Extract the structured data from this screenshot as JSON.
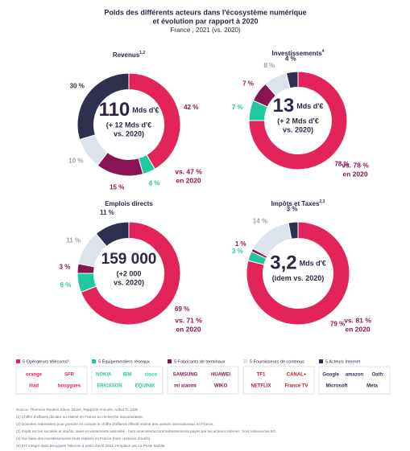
{
  "title": [
    "Poids des différents acteurs dans l'écosystème numérique",
    "et évolution par rapport à 2020"
  ],
  "subtitle": "France , 2021 (vs. 2020)",
  "chart_data": [
    {
      "type": "pie",
      "title": "Revenus",
      "title_note": "1,2",
      "values": [
        42,
        4,
        15,
        10,
        30
      ],
      "value_labels": [
        "42 %",
        "4 %",
        "15 %",
        "10 %",
        "30 %"
      ],
      "center": {
        "main": "110",
        "unit": "Mds d'€",
        "lines": [
          "(+ 12 Mds d'€",
          "vs. 2020)"
        ]
      },
      "note": [
        "vs. 47 %",
        "en 2020"
      ]
    },
    {
      "type": "pie",
      "title": "Investissements",
      "title_note": "4",
      "values": [
        78,
        7,
        7,
        8,
        4
      ],
      "value_labels": [
        "78 %",
        "7 %",
        "7 %",
        "8 %",
        "4 %"
      ],
      "center": {
        "main": "13",
        "unit": "Mds d'€",
        "lines": [
          "(+ 2 Mds d'€",
          "vs. 2020)"
        ]
      },
      "note": [
        "vs. 78 %",
        "en 2020"
      ]
    },
    {
      "type": "pie",
      "title": "Emplois directs",
      "values": [
        69,
        6,
        3,
        11,
        11
      ],
      "value_labels": [
        "69 %",
        "6 %",
        "3 %",
        "11 %",
        "11 %"
      ],
      "center": {
        "main": "159 000",
        "lines": [
          "(+2 000",
          "vs. 2020)"
        ]
      },
      "note": [
        "vs. 71 %",
        "en 2020"
      ]
    },
    {
      "type": "pie",
      "title": "Impôts et Taxes",
      "title_note": "2,3",
      "values": [
        79,
        3,
        1,
        14,
        3
      ],
      "value_labels": [
        "79 %",
        "3 %",
        "1 %",
        "14 %",
        "3 %"
      ],
      "center": {
        "main": "3,2",
        "unit": "Mds d'€",
        "lines": [
          "(idem vs. 2020)"
        ]
      },
      "note": [
        "vs. 81 %",
        "en 2020"
      ]
    }
  ],
  "legend": [
    {
      "name": "5 Opérateurs télécoms⁵",
      "color": "#e3245a",
      "logos": [
        "orange",
        "SFR",
        "iliad",
        "bouygues"
      ]
    },
    {
      "name": "5 Équipementiers réseaux",
      "color": "#1fc9a0",
      "logos": [
        "NOKIA",
        "IBM",
        "cisco",
        "ERICSSON",
        "EQUINIX"
      ]
    },
    {
      "name": "5 Fabricants de terminaux",
      "color": "#8a1451",
      "logos": [
        "SAMSUNG",
        "HUAWEI",
        "mi xiaomi",
        "WIKO"
      ]
    },
    {
      "name": "5 Fournisseurs de contenus",
      "color": "#dde3ec",
      "logos": [
        "TF1",
        "CANAL+",
        "NETFLIX",
        "France TV"
      ]
    },
    {
      "name": "5 Acteurs Internet",
      "color": "#2f3050",
      "logos": [
        "Google",
        "amazon",
        "Oath:",
        "Microsoft",
        "Meta"
      ]
    }
  ],
  "sources": [
    "Source: Thomson Reuters Eikon, Diane, Rapports Annuels, Arthur D. Little",
    "(1) Chiffre d'affaires déclaré ou estimé en France ou recherche documentaire.",
    "(2) Données redressées pour prendre en compte le chiffre d'affaires effectif estimé des acteurs internationaux en France.",
    "(3) Impôt sur les sociétés et impôts, taxes et versements assimilés - hors amendes/accord/redressements payés par les acteurs Internet ; hors redevances 5G.",
    "(4) Sur base des investissements bruts réalisés en France (hors cessions d'actifs).",
    "(5) EIT intégré dans Bouygues Telecom à partir d'avril 2021, remplacé par La Poste Mobile."
  ]
}
